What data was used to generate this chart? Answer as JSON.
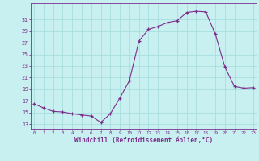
{
  "x": [
    0,
    1,
    2,
    3,
    4,
    5,
    6,
    7,
    8,
    9,
    10,
    11,
    12,
    13,
    14,
    15,
    16,
    17,
    18,
    19,
    20,
    21,
    22,
    23
  ],
  "y": [
    16.5,
    15.8,
    15.2,
    15.1,
    14.8,
    14.6,
    14.4,
    13.3,
    14.8,
    17.5,
    20.5,
    27.3,
    29.3,
    29.8,
    30.5,
    30.8,
    32.2,
    32.4,
    32.3,
    28.5,
    22.8,
    19.5,
    19.2,
    19.3
  ],
  "line_color": "#7B2D8B",
  "marker": "+",
  "bg_color": "#c8f0f0",
  "grid_color": "#a8dede",
  "ylabel_ticks": [
    13,
    15,
    17,
    19,
    21,
    23,
    25,
    27,
    29,
    31
  ],
  "xticks": [
    0,
    1,
    2,
    3,
    4,
    5,
    6,
    7,
    8,
    9,
    10,
    11,
    12,
    13,
    14,
    15,
    16,
    17,
    18,
    19,
    20,
    21,
    22,
    23
  ],
  "ylim": [
    12.2,
    33.8
  ],
  "xlim": [
    -0.3,
    23.3
  ],
  "xlabel": "Windchill (Refroidissement éolien,°C)",
  "xlabel_color": "#7B2D8B",
  "tick_color": "#7B2D8B",
  "title": ""
}
